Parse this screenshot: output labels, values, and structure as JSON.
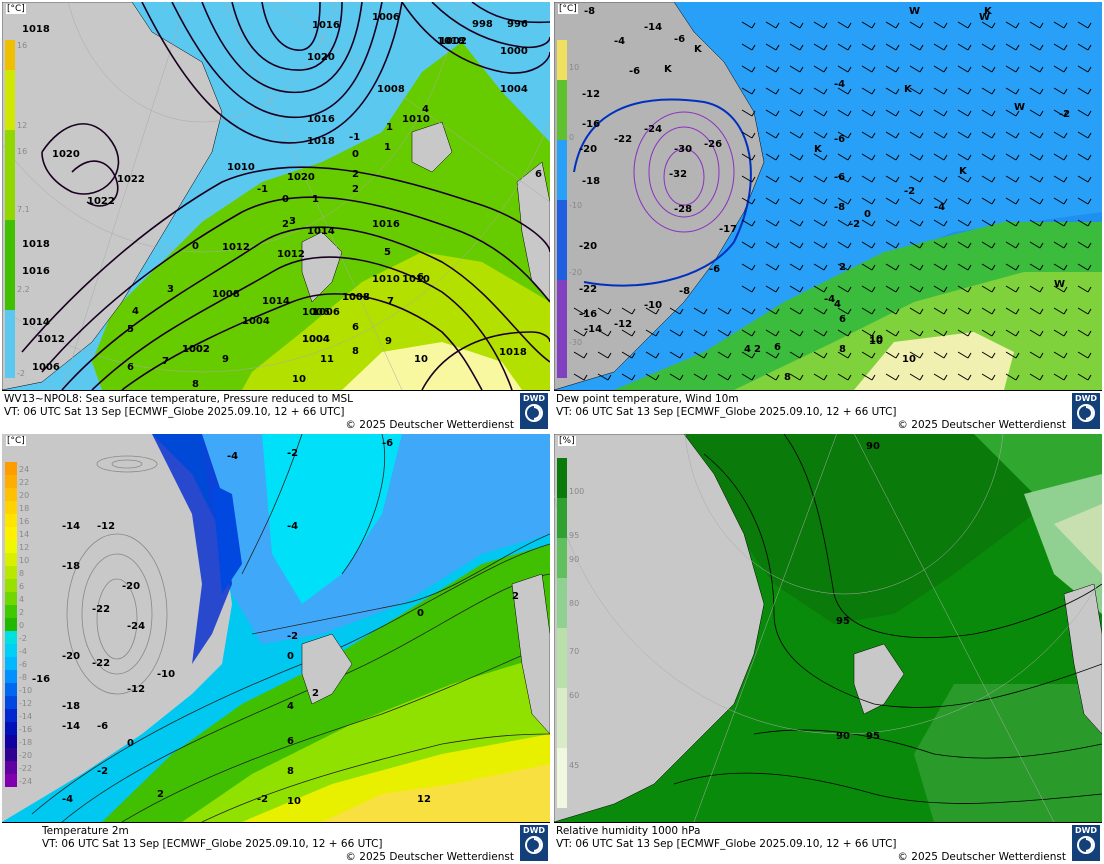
{
  "panels": [
    {
      "id": "sst",
      "title": "WV13~NPOL8: Sea surface temperature,  Pressure reduced to MSL",
      "vt": "VT: 06 UTC Sat  13 Sep [ECMWF_Globe 2025.09.10, 12 + 66 UTC]",
      "copyright": "© 2025 Deutscher Wetterdienst",
      "unit": "[°C]",
      "legend_ticks": [
        "16",
        "12",
        "16",
        "7.1",
        "2.2",
        "-2"
      ],
      "pressure_labels": [
        "1018",
        "1020",
        "1022",
        "1022",
        "1018",
        "1016",
        "1014",
        "1012",
        "1006",
        "1020",
        "1008",
        "1002",
        "1004",
        "1006",
        "1008",
        "1010",
        "1012",
        "1014",
        "1016",
        "1018",
        "1020",
        "1006",
        "998",
        "996",
        "1000",
        "1002",
        "1004",
        "1004",
        "1008",
        "1010",
        "1012",
        "1014",
        "1016",
        "1018",
        "1010",
        "1008",
        "1006",
        "1004",
        "1002",
        "1018",
        "1010",
        "1016"
      ],
      "sst_labels": [
        "0",
        "-1",
        "0",
        "1",
        "2",
        "2",
        "3",
        "4",
        "5",
        "6",
        "7",
        "8",
        "9",
        "10",
        "11",
        "-1",
        "0",
        "1",
        "2",
        "3",
        "4",
        "5",
        "6",
        "7",
        "8",
        "9",
        "10",
        "6",
        "1",
        "6"
      ]
    },
    {
      "id": "dewpoint",
      "title": "Dew point temperature, Wind 10m",
      "vt": "VT: 06 UTC Sat  13 Sep [ECMWF_Globe 2025.09.10,  12 + 66 UTC]",
      "copyright": "© 2025 Deutscher Wetterdienst",
      "unit": "[°C]",
      "legend_ticks": [
        "10",
        "0",
        "-10",
        "-20",
        "-30"
      ],
      "labels": [
        "-8",
        "-14",
        "-4",
        "-6",
        "K",
        "K",
        "W",
        "K",
        "-6",
        "-16",
        "-12",
        "-22",
        "-24",
        "-30",
        "-26",
        "-32",
        "-20",
        "-18",
        "-28",
        "-17",
        "-20",
        "-22",
        "-16",
        "-14",
        "-12",
        "-10",
        "-8",
        "-6",
        "-4",
        "-2",
        "0",
        "2",
        "4",
        "6",
        "8",
        "10",
        "-4",
        "-6",
        "-2",
        "-4",
        "-6",
        "-8",
        "W",
        "W",
        "K",
        "K",
        "K",
        "-2",
        "2",
        "4",
        "6",
        "8",
        "10",
        "10",
        "W"
      ]
    },
    {
      "id": "t2m",
      "title": "Temperature 2m",
      "vt": "VT: 06 UTC Sat  13 Sep [ECMWF_Globe 2025.09.10, 12 + 66 UTC]",
      "copyright": "© 2025 Deutscher Wetterdienst",
      "unit": "[°C]",
      "legend_ticks": [
        "24",
        "22",
        "20",
        "18",
        "16",
        "14",
        "12",
        "10",
        "8",
        "6",
        "4",
        "2",
        "0",
        "-2",
        "-4",
        "-6",
        "-8",
        "-10",
        "-12",
        "-14",
        "-16",
        "-18",
        "-20",
        "-22",
        "-24"
      ],
      "legend_colors": [
        "#ff9c00",
        "#ffae00",
        "#ffc000",
        "#ffd200",
        "#ffe400",
        "#fff000",
        "#f0f800",
        "#d8f000",
        "#b8e800",
        "#98e000",
        "#70d800",
        "#40c800",
        "#20b800",
        "#00e0e0",
        "#00d0f8",
        "#00b8ff",
        "#0090ff",
        "#0068f0",
        "#0048e0",
        "#0028d0",
        "#0010b8",
        "#1000a0",
        "#300090",
        "#6000a0",
        "#8000b0"
      ],
      "labels": [
        "-4",
        "-2",
        "-6",
        "-14",
        "-12",
        "-18",
        "-20",
        "-22",
        "-24",
        "-20",
        "-22",
        "-18",
        "-16",
        "-14",
        "-12",
        "-10",
        "-6",
        "-4",
        "-2",
        "0",
        "2",
        "4",
        "6",
        "8",
        "10",
        "12",
        "-2",
        "0",
        "2",
        "0",
        "2",
        "-4",
        "-2"
      ]
    },
    {
      "id": "rh",
      "title": "Relative humidity 1000 hPa",
      "vt": "VT: 06 UTC Sat  13 Sep [ECMWF_Globe 2025.09.10, 12 + 66 UTC]",
      "copyright": "© 2025 Deutscher Wetterdienst",
      "unit": "[%]",
      "legend_ticks": [
        "100",
        "95",
        "90",
        "80",
        "70",
        "60",
        "45"
      ],
      "labels": [
        "90",
        "95",
        "90",
        "95"
      ]
    }
  ],
  "logo_text": "DWD",
  "colors": {
    "land": "#c8c8c8",
    "sea_cold": "#5bc8f0",
    "sea_green": "#40c000",
    "sea_warm": "#f8f8a0",
    "rh_dark": "#0a7a0a"
  }
}
